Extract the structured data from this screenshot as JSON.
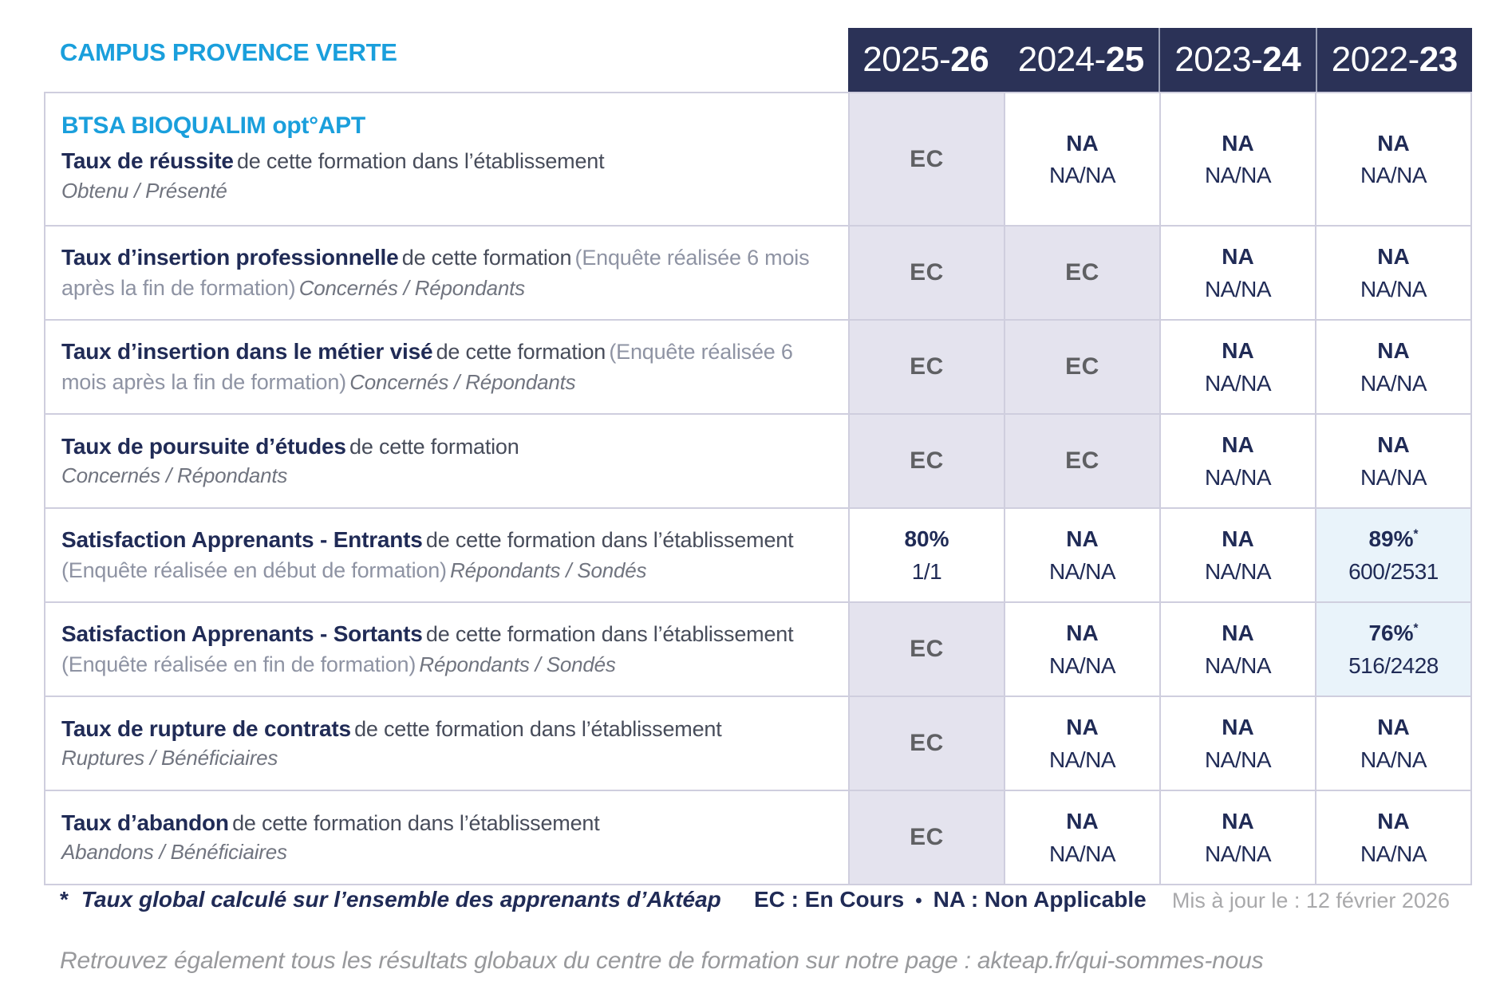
{
  "header": {
    "campus": "CAMPUS PROVENCE VERTE",
    "columns": [
      {
        "prefix": "2025-",
        "bold": "26"
      },
      {
        "prefix": "2024-",
        "bold": "25"
      },
      {
        "prefix": "2023-",
        "bold": "24"
      },
      {
        "prefix": "2022-",
        "bold": "23"
      }
    ]
  },
  "program": "BTSA BIOQUALIM opt°APT",
  "rows": [
    {
      "has_program": true,
      "tall": true,
      "title": "Taux de réussite",
      "desc": "de cette formation dans l’établissement",
      "paren": "",
      "sub": "Obtenu / Présenté",
      "sub_newline": true,
      "cells": [
        {
          "type": "ec",
          "main": "EC"
        },
        {
          "type": "na",
          "main": "NA",
          "sub": "NA/NA"
        },
        {
          "type": "na",
          "main": "NA",
          "sub": "NA/NA"
        },
        {
          "type": "na",
          "main": "NA",
          "sub": "NA/NA"
        }
      ]
    },
    {
      "title": "Taux d’insertion professionnelle",
      "desc": "de cette formation",
      "paren": "(Enquête réalisée 6 mois après la fin de formation)",
      "sub": "Concernés / Répondants",
      "sub_newline": false,
      "cells": [
        {
          "type": "ec",
          "main": "EC"
        },
        {
          "type": "ec",
          "main": "EC"
        },
        {
          "type": "na",
          "main": "NA",
          "sub": "NA/NA"
        },
        {
          "type": "na",
          "main": "NA",
          "sub": "NA/NA"
        }
      ]
    },
    {
      "title": "Taux d’insertion dans le métier visé",
      "desc": "de cette formation",
      "paren": "(Enquête réalisée 6 mois après la fin de formation)",
      "sub": "Concernés / Répondants",
      "sub_newline": false,
      "cells": [
        {
          "type": "ec",
          "main": "EC"
        },
        {
          "type": "ec",
          "main": "EC"
        },
        {
          "type": "na",
          "main": "NA",
          "sub": "NA/NA"
        },
        {
          "type": "na",
          "main": "NA",
          "sub": "NA/NA"
        }
      ]
    },
    {
      "title": "Taux de poursuite d’études",
      "desc": "de cette formation",
      "paren": "",
      "sub": "Concernés / Répondants",
      "sub_newline": true,
      "cells": [
        {
          "type": "ec",
          "main": "EC"
        },
        {
          "type": "ec",
          "main": "EC"
        },
        {
          "type": "na",
          "main": "NA",
          "sub": "NA/NA"
        },
        {
          "type": "na",
          "main": "NA",
          "sub": "NA/NA"
        }
      ]
    },
    {
      "title": "Satisfaction Apprenants - Entrants",
      "desc": "de cette formation dans l’établissement",
      "paren": "(Enquête réalisée en début de formation)",
      "sub": "Répondants / Sondés",
      "sub_newline": false,
      "cells": [
        {
          "type": "pct",
          "main": "80%",
          "sub": "1/1"
        },
        {
          "type": "na",
          "main": "NA",
          "sub": "NA/NA"
        },
        {
          "type": "na",
          "main": "NA",
          "sub": "NA/NA"
        },
        {
          "type": "pct_star",
          "main": "89%",
          "sup": "*",
          "sub": "600/2531"
        }
      ]
    },
    {
      "title": "Satisfaction Apprenants - Sortants",
      "desc": "de cette formation dans l’établissement",
      "paren": "(Enquête réalisée en fin de formation)",
      "sub": "Répondants / Sondés",
      "sub_newline": false,
      "cells": [
        {
          "type": "ec",
          "main": "EC"
        },
        {
          "type": "na",
          "main": "NA",
          "sub": "NA/NA"
        },
        {
          "type": "na",
          "main": "NA",
          "sub": "NA/NA"
        },
        {
          "type": "pct_star",
          "main": "76%",
          "sup": "*",
          "sub": "516/2428"
        }
      ]
    },
    {
      "title": "Taux de rupture de contrats",
      "desc": "de cette formation dans l’établissement",
      "paren": "",
      "sub": "Ruptures / Bénéficiaires",
      "sub_newline": true,
      "cells": [
        {
          "type": "ec",
          "main": "EC"
        },
        {
          "type": "na",
          "main": "NA",
          "sub": "NA/NA"
        },
        {
          "type": "na",
          "main": "NA",
          "sub": "NA/NA"
        },
        {
          "type": "na",
          "main": "NA",
          "sub": "NA/NA"
        }
      ]
    },
    {
      "title": "Taux d’abandon",
      "desc": "de cette formation dans l’établissement",
      "paren": "",
      "sub": "Abandons / Bénéficiaires",
      "sub_newline": true,
      "cells": [
        {
          "type": "ec",
          "main": "EC"
        },
        {
          "type": "na",
          "main": "NA",
          "sub": "NA/NA"
        },
        {
          "type": "na",
          "main": "NA",
          "sub": "NA/NA"
        },
        {
          "type": "na",
          "main": "NA",
          "sub": "NA/NA"
        }
      ]
    }
  ],
  "footer": {
    "star": "*",
    "note": "Taux global calculé sur l’ensemble des apprenants d’Aktéap",
    "legend_ec": "EC : En Cours",
    "legend_sep": "•",
    "legend_na": "NA : Non Applicable",
    "updated": "Mis à jour le : 12 février 2026"
  },
  "bottom_note": "Retrouvez également tous les résultats globaux du centre de formation sur notre page : akteap.fr/qui-sommes-nous",
  "colors": {
    "accent_cyan": "#1a9fdc",
    "navy": "#202b56",
    "header_bg": "#2b3257",
    "cell_lavender": "#e4e3ee",
    "cell_lightblue": "#e9f3fa",
    "ec_gray": "#5f6063",
    "border": "#cfcede"
  }
}
